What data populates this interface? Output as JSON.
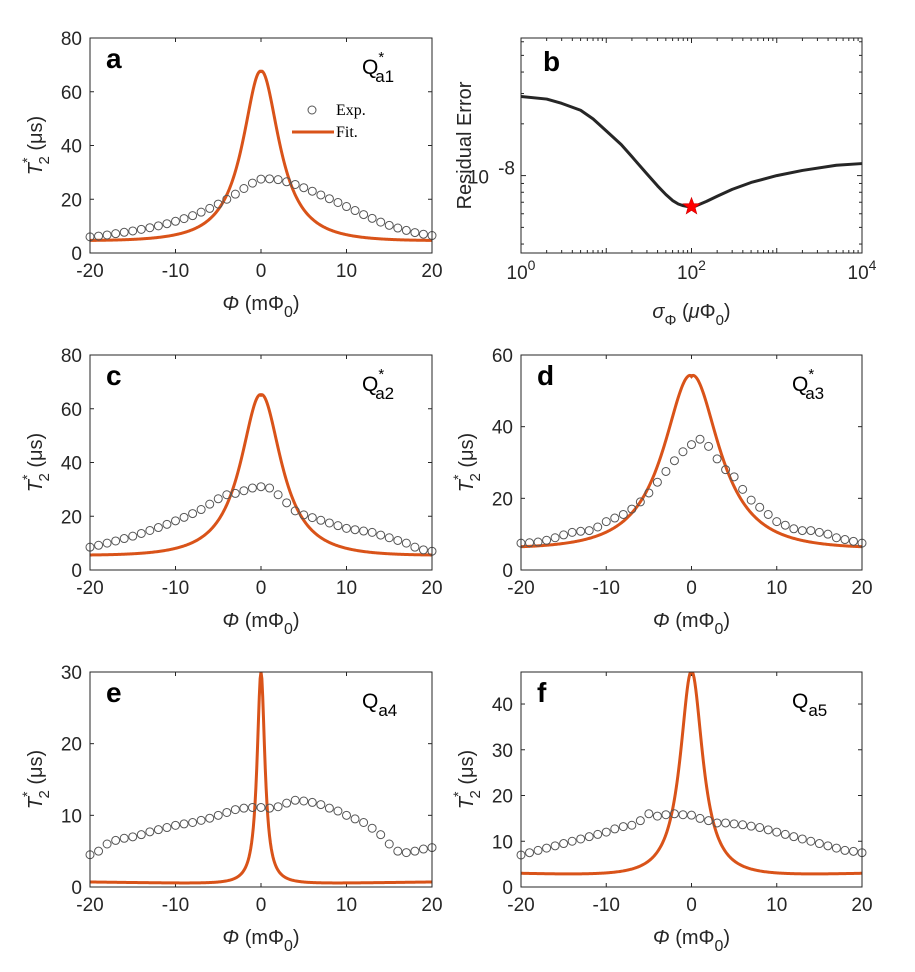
{
  "colors": {
    "fit": "#d95319",
    "exp_marker": "#555555",
    "residual": "#262626",
    "star": "#ff0000"
  },
  "chart_data": [
    {
      "id": "a",
      "type": "scatter",
      "panel_letter": "a",
      "qubit_label": "Q",
      "qubit_sub": "a1",
      "qubit_sup": "*",
      "xlabel_phi": "Φ",
      "xlabel_rest": " (mΦ",
      "xlabel_sub": "0",
      "xlabel_close": ")",
      "ylabel_main": "T",
      "ylabel_sub": "2",
      "ylabel_sup": "*",
      "ylabel_units": " (μs)",
      "xlim": [
        -20,
        20
      ],
      "ylim": [
        0,
        80
      ],
      "xticks": [
        -20,
        -10,
        0,
        10,
        20
      ],
      "yticks": [
        0,
        20,
        40,
        60,
        80
      ],
      "legend": [
        "Exp.",
        "Fit."
      ],
      "fit": {
        "name": "Fit.",
        "peak": 67.5,
        "gamma": 2.6,
        "base": 0,
        "tail": 4.7
      },
      "exp": {
        "name": "Exp.",
        "x": [
          -20,
          -19,
          -18,
          -17,
          -16,
          -15,
          -14,
          -13,
          -12,
          -11,
          -10,
          -9,
          -8,
          -7,
          -6,
          -5,
          -4,
          -3,
          -2,
          -1,
          0,
          1,
          2,
          3,
          4,
          5,
          6,
          7,
          8,
          9,
          10,
          11,
          12,
          13,
          14,
          15,
          16,
          17,
          18,
          19,
          20
        ],
        "y": [
          6,
          6.3,
          6.7,
          7.2,
          7.7,
          8.2,
          8.8,
          9.4,
          10.1,
          10.9,
          11.8,
          12.8,
          13.9,
          15.2,
          16.6,
          18.2,
          20,
          21.9,
          24,
          26,
          27.5,
          27.6,
          27.3,
          26.5,
          25.5,
          24.3,
          23,
          21.6,
          20.2,
          18.8,
          17.3,
          15.8,
          14.3,
          12.9,
          11.5,
          10.3,
          9.3,
          8.4,
          7.6,
          7,
          6.5
        ]
      }
    },
    {
      "id": "b",
      "type": "line",
      "panel_letter": "b",
      "ylabel_text": "Residual Error",
      "xlabel_sigma": "σ",
      "xlabel_sigsub": "Φ",
      "xlabel_open": " (",
      "xlabel_mu": "μ",
      "xlabel_phi0": "Φ",
      "xlabel_sub": "0",
      "xlabel_close": ")",
      "xscale": "log",
      "yscale": "log",
      "xlim": [
        1,
        10000
      ],
      "ylim_log10": [
        -8.45,
        -7.2
      ],
      "xticks": [
        {
          "base": "10",
          "exp": "0",
          "v": 1
        },
        {
          "base": "10",
          "exp": "2",
          "v": 100
        },
        {
          "base": "10",
          "exp": "4",
          "v": 10000
        }
      ],
      "yticks": [
        {
          "base": "10",
          "exp": "-8",
          "v": -8
        }
      ],
      "series": [
        {
          "name": "Residual Error",
          "x": [
            1,
            2,
            3,
            5,
            7,
            10,
            15,
            20,
            30,
            40,
            50,
            60,
            70,
            80,
            90,
            100,
            110,
            120,
            150,
            200,
            300,
            500,
            1000,
            2000,
            5000,
            10000
          ],
          "y_log10": [
            -7.54,
            -7.555,
            -7.58,
            -7.62,
            -7.67,
            -7.74,
            -7.82,
            -7.89,
            -7.99,
            -8.06,
            -8.11,
            -8.145,
            -8.165,
            -8.175,
            -8.18,
            -8.18,
            -8.178,
            -8.17,
            -8.15,
            -8.12,
            -8.08,
            -8.04,
            -8.0,
            -7.97,
            -7.94,
            -7.93
          ]
        }
      ],
      "marker": {
        "name": "optimum",
        "x": 100,
        "y_log10": -8.18
      }
    },
    {
      "id": "c",
      "type": "scatter",
      "panel_letter": "c",
      "qubit_label": "Q",
      "qubit_sub": "a2",
      "qubit_sup": "*",
      "xlabel_phi": "Φ",
      "xlabel_rest": " (mΦ",
      "xlabel_sub": "0",
      "xlabel_close": ")",
      "ylabel_main": "T",
      "ylabel_sub": "2",
      "ylabel_sup": "*",
      "ylabel_units": " (μs)",
      "xlim": [
        -20,
        20
      ],
      "ylim": [
        0,
        80
      ],
      "xticks": [
        -20,
        -10,
        0,
        10,
        20
      ],
      "yticks": [
        0,
        20,
        40,
        60,
        80
      ],
      "fit": {
        "name": "Fit.",
        "peak": 65,
        "gamma": 2.9,
        "base": 0,
        "tail": 5.6
      },
      "exp": {
        "name": "Exp.",
        "x": [
          -20,
          -19,
          -18,
          -17,
          -16,
          -15,
          -14,
          -13,
          -12,
          -11,
          -10,
          -9,
          -8,
          -7,
          -6,
          -5,
          -4,
          -3,
          -2,
          -1,
          0,
          1,
          2,
          3,
          4,
          5,
          6,
          7,
          8,
          9,
          10,
          11,
          12,
          13,
          14,
          15,
          16,
          17,
          18,
          19,
          20
        ],
        "y": [
          8.5,
          9.2,
          10,
          10.8,
          11.7,
          12.6,
          13.6,
          14.7,
          15.8,
          17,
          18.3,
          19.6,
          21,
          22.5,
          24.5,
          26.5,
          28,
          28.5,
          29.5,
          30.5,
          31,
          30.5,
          28,
          25,
          22,
          20.5,
          19.5,
          18.5,
          17.5,
          16.5,
          15.5,
          15,
          14.5,
          14,
          13,
          12,
          11,
          10,
          8.5,
          7.5,
          7
        ]
      }
    },
    {
      "id": "d",
      "type": "scatter",
      "panel_letter": "d",
      "qubit_label": "Q",
      "qubit_sub": "a3",
      "qubit_sup": "*",
      "xlabel_phi": "Φ",
      "xlabel_rest": " (mΦ",
      "xlabel_sub": "0",
      "xlabel_close": ")",
      "ylabel_main": "T",
      "ylabel_sub": "2",
      "ylabel_sup": "*",
      "ylabel_units": " (μs)",
      "xlim": [
        -20,
        20
      ],
      "ylim": [
        0,
        60
      ],
      "xticks": [
        -20,
        -10,
        0,
        10,
        20
      ],
      "yticks": [
        0,
        20,
        40,
        60
      ],
      "fit": {
        "name": "Fit.",
        "peak": 54,
        "gamma": 4.0,
        "base": 0,
        "tail": 6.5
      },
      "exp": {
        "name": "Exp.",
        "x": [
          -20,
          -19,
          -18,
          -17,
          -16,
          -15,
          -14,
          -13,
          -12,
          -11,
          -10,
          -9,
          -8,
          -7,
          -6,
          -5,
          -4,
          -3,
          -2,
          -1,
          0,
          1,
          2,
          3,
          4,
          5,
          6,
          7,
          8,
          9,
          10,
          11,
          12,
          13,
          14,
          15,
          16,
          17,
          18,
          19,
          20
        ],
        "y": [
          7.5,
          7.6,
          7.8,
          8.3,
          9,
          9.8,
          10.5,
          10.8,
          11,
          12,
          13.5,
          14.5,
          15.5,
          17,
          19,
          21.5,
          24.5,
          27.5,
          30.5,
          33,
          35,
          36.5,
          34.5,
          31,
          28,
          26,
          22.5,
          19.5,
          17.5,
          15.5,
          13.5,
          12.5,
          11.5,
          11,
          11,
          10.5,
          10,
          9,
          8.5,
          8,
          7.5
        ]
      }
    },
    {
      "id": "e",
      "type": "scatter",
      "panel_letter": "e",
      "qubit_label": "Q",
      "qubit_sub": "a4",
      "qubit_sup": "",
      "xlabel_phi": "Φ",
      "xlabel_rest": " (mΦ",
      "xlabel_sub": "0",
      "xlabel_close": ")",
      "ylabel_main": "T",
      "ylabel_sub": "2",
      "ylabel_sup": "*",
      "ylabel_units": " (μs)",
      "xlim": [
        -20,
        20
      ],
      "ylim": [
        0,
        30
      ],
      "xticks": [
        -20,
        -10,
        0,
        10,
        20
      ],
      "yticks": [
        0,
        10,
        20,
        30
      ],
      "fit": {
        "name": "Fit.",
        "peak": 30,
        "gamma": 0.55,
        "base": 0,
        "tail": 0.7
      },
      "exp": {
        "name": "Exp.",
        "x": [
          -20,
          -19,
          -18,
          -17,
          -16,
          -15,
          -14,
          -13,
          -12,
          -11,
          -10,
          -9,
          -8,
          -7,
          -6,
          -5,
          -4,
          -3,
          -2,
          -1,
          0,
          1,
          2,
          3,
          4,
          5,
          6,
          7,
          8,
          9,
          10,
          11,
          12,
          13,
          14,
          15,
          16,
          17,
          18,
          19,
          20
        ],
        "y": [
          4.5,
          5,
          6,
          6.5,
          6.8,
          7,
          7.3,
          7.7,
          8,
          8.3,
          8.6,
          8.8,
          9,
          9.3,
          9.6,
          10,
          10.4,
          10.8,
          11,
          11.1,
          11.1,
          11,
          11.2,
          11.7,
          12.1,
          12,
          11.8,
          11.5,
          11,
          10.6,
          10,
          9.5,
          9,
          8.2,
          7.3,
          6,
          5,
          4.8,
          5,
          5.3,
          5.5
        ]
      }
    },
    {
      "id": "f",
      "type": "scatter",
      "panel_letter": "f",
      "qubit_label": "Q",
      "qubit_sub": "a5",
      "qubit_sup": "",
      "xlabel_phi": "Φ",
      "xlabel_rest": " (mΦ",
      "xlabel_sub": "0",
      "xlabel_close": ")",
      "ylabel_main": "T",
      "ylabel_sub": "2",
      "ylabel_sup": "*",
      "ylabel_units": " (μs)",
      "xlim": [
        -20,
        20
      ],
      "ylim": [
        0,
        47
      ],
      "xticks": [
        -20,
        -10,
        0,
        10,
        20
      ],
      "yticks": [
        0,
        10,
        20,
        30,
        40
      ],
      "fit": {
        "name": "Fit.",
        "peak": 47,
        "gamma": 1.6,
        "base": 0,
        "tail": 3
      },
      "exp": {
        "name": "Exp.",
        "x": [
          -20,
          -19,
          -18,
          -17,
          -16,
          -15,
          -14,
          -13,
          -12,
          -11,
          -10,
          -9,
          -8,
          -7,
          -6,
          -5,
          -4,
          -3,
          -2,
          -1,
          0,
          1,
          2,
          3,
          4,
          5,
          6,
          7,
          8,
          9,
          10,
          11,
          12,
          13,
          14,
          15,
          16,
          17,
          18,
          19,
          20
        ],
        "y": [
          7,
          7.5,
          8,
          8.5,
          9,
          9.5,
          10,
          10.5,
          11,
          11.5,
          12,
          12.7,
          13.2,
          13.5,
          14.5,
          16,
          15.5,
          15.8,
          16,
          15.8,
          15.7,
          15,
          14.5,
          14,
          14,
          13.8,
          13.6,
          13.3,
          13,
          12.5,
          12,
          11.5,
          11,
          10.5,
          10,
          9.5,
          9,
          8.5,
          8,
          7.8,
          7.5
        ]
      }
    }
  ]
}
